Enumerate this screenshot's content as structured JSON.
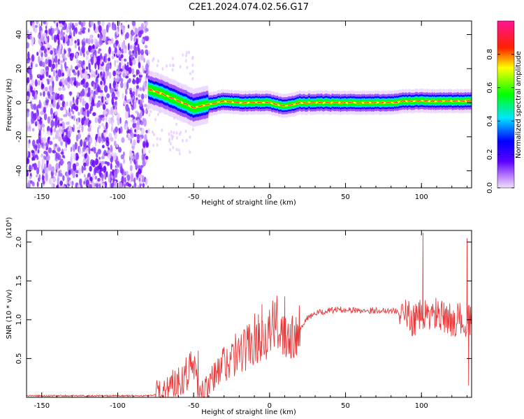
{
  "title": "C2E1.2024.074.02.56.G17",
  "chart_data": [
    {
      "type": "heatmap",
      "xlabel": "Height of straight line (km)",
      "ylabel": "Frequency (Hz)",
      "xlim": [
        -160,
        133
      ],
      "ylim": [
        -50,
        48
      ],
      "xticks": [
        -150,
        -100,
        -50,
        0,
        50,
        100
      ],
      "yticks": [
        -40,
        -20,
        0,
        20,
        40
      ],
      "colorbar": {
        "label": "Normalized spectral amplitude",
        "range": [
          0,
          1
        ],
        "ticks": [
          0.0,
          0.2,
          0.4,
          0.6,
          0.8
        ],
        "tick_labels": [
          "0.0",
          "0.2",
          "0.4",
          "0.6",
          "0.8"
        ],
        "colors": [
          "#f2e0ff",
          "#7a00ff",
          "#0000ff",
          "#00ffff",
          "#00ff00",
          "#ffff00",
          "#ff0000",
          "#ff1493"
        ]
      },
      "noise_region_km": [
        -160,
        -80
      ],
      "trace_center_hz": [
        [
          -80,
          8
        ],
        [
          -70,
          5
        ],
        [
          -60,
          1
        ],
        [
          -50,
          -3
        ],
        [
          -40,
          -1
        ],
        [
          -30,
          1
        ],
        [
          -20,
          0
        ],
        [
          -10,
          0
        ],
        [
          0,
          0
        ],
        [
          10,
          -2
        ],
        [
          20,
          0
        ],
        [
          30,
          0
        ],
        [
          40,
          0
        ],
        [
          50,
          0
        ],
        [
          60,
          0
        ],
        [
          70,
          0
        ],
        [
          80,
          0
        ],
        [
          90,
          1
        ],
        [
          100,
          1
        ],
        [
          110,
          1
        ],
        [
          120,
          1
        ],
        [
          130,
          1
        ]
      ]
    },
    {
      "type": "line",
      "xlabel": "Height of straight line (km)",
      "ylabel": "SNR (10 * v/v)",
      "y_multiplier": "(x10⁴)",
      "xlim": [
        -160,
        133
      ],
      "ylim": [
        0,
        2.15
      ],
      "xticks": [
        -150,
        -100,
        -50,
        0,
        50,
        100
      ],
      "yticks": [
        0.5,
        1.0,
        1.5,
        2.0
      ],
      "ytick_labels": [
        "0.5",
        "1.0",
        "1.5",
        "2.0"
      ],
      "color": "#e8393a",
      "series": [
        {
          "x": [
            -160,
            -150,
            -140,
            -130,
            -120,
            -110,
            -100,
            -90,
            -80,
            -75,
            -70,
            -65,
            -60,
            -55,
            -50,
            -47,
            -45,
            -40,
            -35,
            -30,
            -25,
            -20,
            -15,
            -10,
            -5,
            0,
            5,
            10,
            15,
            20,
            25,
            30,
            35,
            40,
            45,
            50,
            55,
            60,
            65,
            70,
            75,
            80,
            85,
            90,
            95,
            100,
            105,
            110,
            115,
            120,
            125,
            130,
            133
          ],
          "y": [
            0.02,
            0.02,
            0.02,
            0.02,
            0.02,
            0.02,
            0.02,
            0.02,
            0.02,
            0.03,
            0.08,
            0.15,
            0.22,
            0.32,
            0.42,
            0.1,
            0.03,
            0.12,
            0.3,
            0.45,
            0.5,
            0.58,
            0.65,
            0.75,
            0.8,
            0.85,
            0.95,
            0.85,
            0.82,
            0.9,
            1.02,
            1.08,
            1.1,
            1.12,
            1.13,
            1.13,
            1.12,
            1.12,
            1.12,
            1.12,
            1.12,
            1.12,
            1.1,
            1.05,
            1.0,
            1.05,
            1.05,
            1.08,
            1.0,
            1.0,
            1.0,
            1.0,
            0.95
          ],
          "spikes": [
            [
              -47,
              0.6
            ],
            [
              -5,
              1.2
            ],
            [
              10,
              1.3
            ],
            [
              101,
              2.12
            ],
            [
              130,
              2.05
            ],
            [
              131,
              0.15
            ]
          ]
        }
      ]
    }
  ]
}
